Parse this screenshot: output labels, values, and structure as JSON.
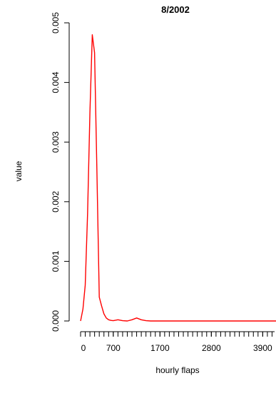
{
  "chart_data": {
    "type": "line",
    "title": "8/2002",
    "xlabel": "hourly flaps",
    "ylabel": "value",
    "xlim": [
      0,
      4200
    ],
    "ylim": [
      0,
      0.005
    ],
    "x_ticks": [
      0,
      700,
      1700,
      2800,
      3900
    ],
    "x_tick_labels": [
      "0",
      "700",
      "1700",
      "2800",
      "3900"
    ],
    "y_ticks": [
      0,
      0.001,
      0.002,
      0.003,
      0.004,
      0.005
    ],
    "y_tick_labels": [
      "0.000",
      "0.001",
      "0.002",
      "0.003",
      "0.004",
      "0.005"
    ],
    "x_minor_step": 100,
    "grid": false,
    "series": [
      {
        "color": "#ff0000",
        "x": [
          0,
          50,
          100,
          150,
          200,
          250,
          300,
          350,
          400,
          450,
          500,
          550,
          600,
          650,
          700,
          800,
          900,
          1000,
          1100,
          1200,
          1300,
          1400,
          1500,
          1700,
          2000,
          2500,
          3000,
          3500,
          4000,
          4200
        ],
        "y": [
          0.0,
          0.0002,
          0.0006,
          0.0018,
          0.0035,
          0.0048,
          0.0045,
          0.0025,
          0.0004,
          0.00025,
          0.00012,
          5e-05,
          2e-05,
          1e-05,
          5e-06,
          2e-05,
          5e-06,
          0.0,
          2e-05,
          5e-05,
          2e-05,
          5e-06,
          0.0,
          0.0,
          0.0,
          0.0,
          0.0,
          0.0,
          0.0,
          0.0
        ]
      }
    ]
  }
}
